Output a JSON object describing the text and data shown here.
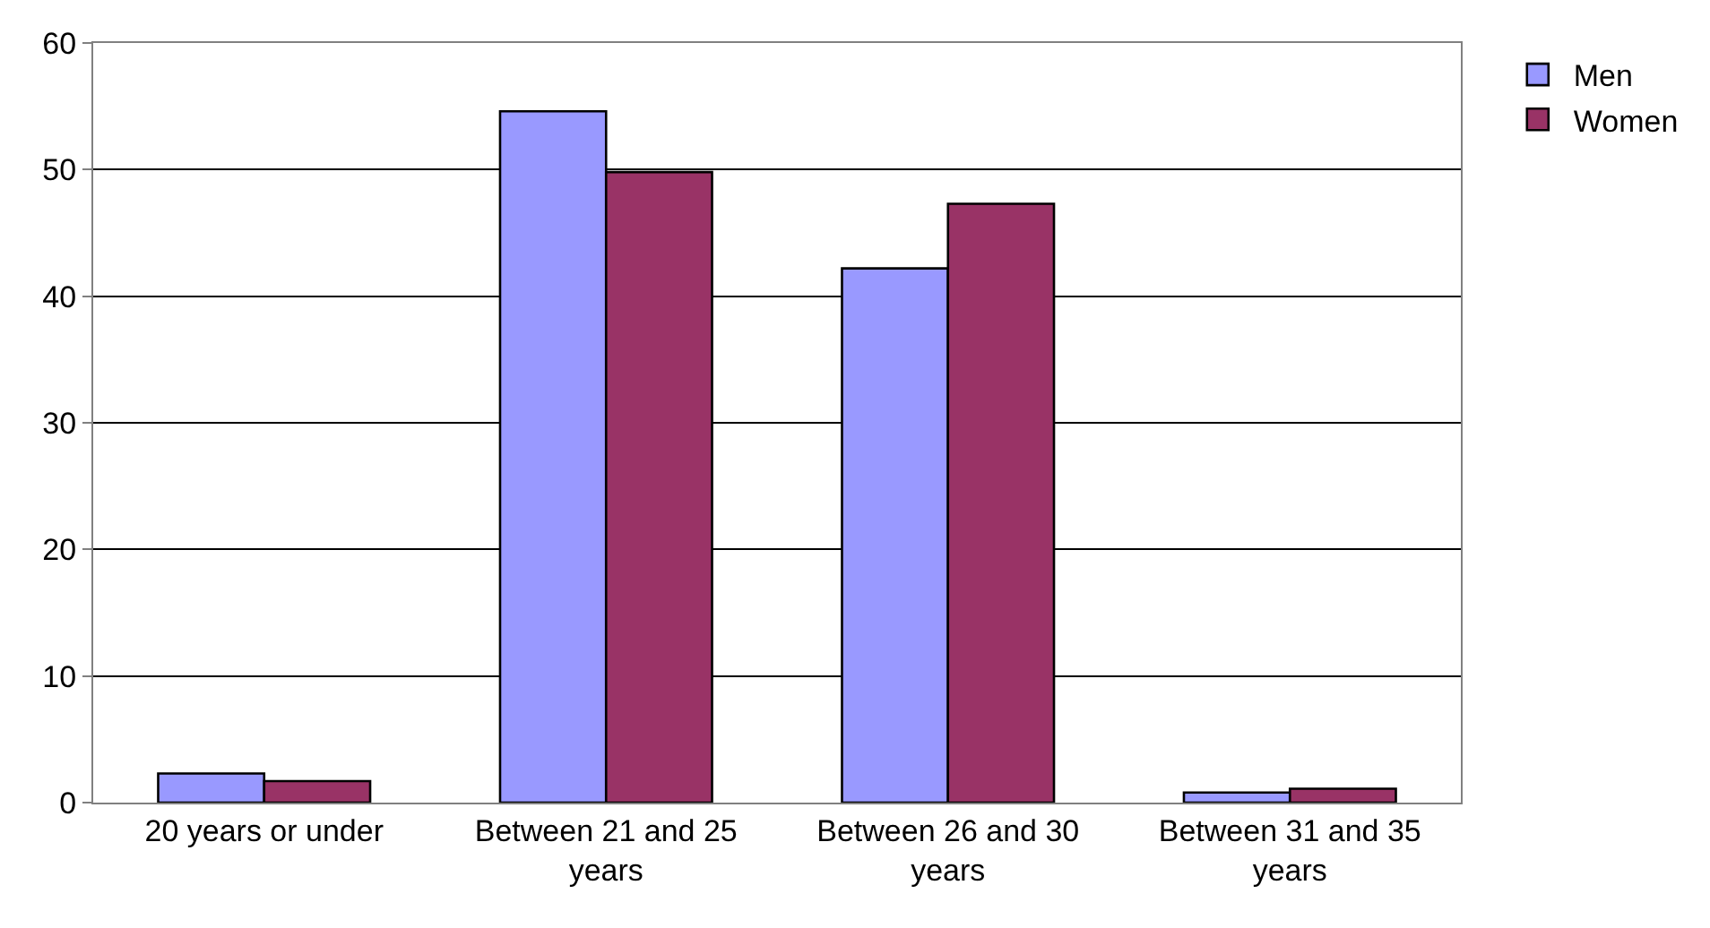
{
  "chart_data": {
    "type": "bar",
    "categories": [
      "20 years or under",
      "Between 21 and 25 years",
      "Between 26 and 30 years",
      "Between 31 and 35 years"
    ],
    "series": [
      {
        "name": "Men",
        "color": "#9999ff",
        "values": [
          2.3,
          54.6,
          42.2,
          0.8
        ]
      },
      {
        "name": "Women",
        "color": "#993366",
        "values": [
          1.7,
          49.8,
          47.3,
          1.1
        ]
      }
    ],
    "ylim": [
      0,
      60
    ],
    "yticks": [
      0,
      10,
      20,
      30,
      40,
      50,
      60
    ],
    "grid": "y",
    "legend": "top right"
  }
}
